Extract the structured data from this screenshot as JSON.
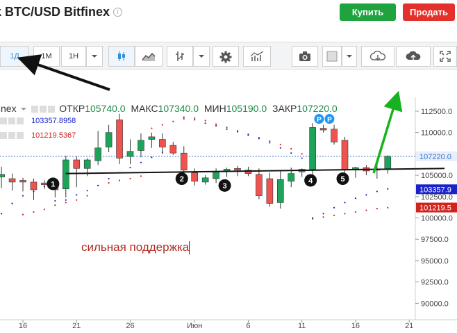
{
  "header": {
    "title": "k BTC/USD Bitfinex",
    "buy_label": "Купить",
    "sell_label": "Продать"
  },
  "toolbar": {
    "interval_1d": "1Д",
    "interval_1m": "1М",
    "interval_1h": "1Н"
  },
  "legend": {
    "symbol": "finex",
    "open_label": "ОТКР",
    "open_value": "105740.0",
    "high_label": "МАКС",
    "high_value": "107340.0",
    "low_label": "МИН",
    "low_value": "105190.0",
    "close_label": "ЗАКР",
    "close_value": "107220.0",
    "ind1_value": "103357.8958",
    "ind2_value": "101219.5367"
  },
  "annotation": "сильная поддержка",
  "markers": [
    "1",
    "2",
    "3",
    "4",
    "5"
  ],
  "badges": [
    "P",
    "P"
  ],
  "colors": {
    "up": "#1ea35b",
    "down": "#ef5350",
    "buy": "#1fa33f",
    "sell": "#e4312b",
    "arrow_green": "#17b21f",
    "ind1": "#1a22c8",
    "ind2": "#d0241e"
  },
  "chart_data": {
    "type": "candlestick",
    "price_axis": [
      "112500.0",
      "110000.0",
      "107500.0",
      "105000.0",
      "102500.0",
      "100000.0",
      "97500.0",
      "95000.0",
      "92500.0",
      "90000.0"
    ],
    "ylim": [
      89500,
      114500
    ],
    "price_tags": [
      {
        "text": "107220.0",
        "value": 107220,
        "color": "#2f74d0",
        "bg": "#e8eefa"
      },
      {
        "text": "103357.9",
        "value": 103357.9,
        "color": "#ffffff",
        "bg": "#1a22c8"
      },
      {
        "text": "101219.5",
        "value": 101219.5,
        "color": "#ffffff",
        "bg": "#d0241e"
      }
    ],
    "x_labels": [
      {
        "day": 0,
        "label": "16"
      },
      {
        "day": 5,
        "label": "21"
      },
      {
        "day": 10,
        "label": "26"
      },
      {
        "day": 16,
        "label": "Июн"
      },
      {
        "day": 21,
        "label": "6"
      },
      {
        "day": 26,
        "label": "11"
      },
      {
        "day": 31,
        "label": "16"
      },
      {
        "day": 36,
        "label": "21"
      }
    ],
    "candles": [
      [
        -2,
        104800,
        106000,
        103500,
        105100
      ],
      [
        -1,
        104600,
        105200,
        103200,
        104200
      ],
      [
        0,
        104400,
        104700,
        103100,
        104200
      ],
      [
        1,
        104200,
        104600,
        102100,
        103300
      ],
      [
        2,
        104100,
        104400,
        103400,
        103900
      ],
      [
        3,
        103900,
        104300,
        102400,
        103300
      ],
      [
        4,
        103400,
        107300,
        102400,
        106800
      ],
      [
        5,
        106800,
        107200,
        103600,
        105800
      ],
      [
        6,
        105800,
        107000,
        104900,
        106800
      ],
      [
        7,
        106700,
        110200,
        106200,
        108200
      ],
      [
        8,
        108300,
        110900,
        107700,
        110000
      ],
      [
        9,
        111500,
        112200,
        106300,
        107000
      ],
      [
        10,
        107200,
        109200,
        106300,
        107800
      ],
      [
        11,
        107900,
        109900,
        107100,
        109100
      ],
      [
        12,
        109200,
        110000,
        108200,
        109500
      ],
      [
        13,
        109200,
        109900,
        107500,
        108300
      ],
      [
        14,
        108500,
        108900,
        107400,
        107600
      ],
      [
        15,
        107600,
        108400,
        105200,
        105600
      ],
      [
        16,
        105300,
        105800,
        103800,
        104300
      ],
      [
        17,
        104200,
        105000,
        103900,
        104700
      ],
      [
        18,
        104600,
        105800,
        104100,
        105400
      ],
      [
        19,
        105500,
        105900,
        104800,
        105700
      ],
      [
        20,
        105800,
        106100,
        104900,
        105600
      ],
      [
        21,
        105600,
        106000,
        104900,
        105200
      ],
      [
        22,
        105100,
        105800,
        102200,
        102600
      ],
      [
        23,
        104600,
        105300,
        101300,
        101700
      ],
      [
        24,
        101800,
        105600,
        101100,
        104500
      ],
      [
        25,
        104300,
        105900,
        103600,
        105200
      ],
      [
        26,
        105400,
        105800,
        104800,
        105700
      ],
      [
        27,
        105700,
        111100,
        105000,
        110600
      ],
      [
        28,
        110500,
        110900,
        110000,
        110300
      ],
      [
        29,
        110400,
        110900,
        108600,
        108900
      ],
      [
        30,
        109100,
        109500,
        105300,
        105600
      ],
      [
        31,
        105600,
        106000,
        104700,
        105900
      ],
      [
        32,
        105900,
        106200,
        105000,
        105500
      ],
      [
        33,
        105600,
        106400,
        104600,
        105700
      ],
      [
        34,
        105740,
        107340,
        105190,
        107220
      ]
    ],
    "support_line": [
      [
        4,
        105200
      ],
      [
        38,
        105800
      ]
    ],
    "psar_blue": [
      [
        -3,
        99000
      ],
      [
        -2,
        100500
      ],
      [
        -1,
        101700
      ],
      [
        0,
        102600
      ],
      [
        1,
        103100
      ],
      [
        2,
        103700
      ],
      [
        3,
        102000
      ],
      [
        4,
        102100
      ],
      [
        5,
        102700
      ],
      [
        6,
        103200
      ],
      [
        7,
        103800
      ],
      [
        8,
        104600
      ],
      [
        9,
        105300
      ],
      [
        10,
        105900
      ],
      [
        11,
        106500
      ],
      [
        12,
        107100
      ],
      [
        13,
        107700
      ],
      [
        14,
        108200
      ],
      [
        15,
        111800
      ],
      [
        16,
        111500
      ],
      [
        17,
        111100
      ],
      [
        18,
        110800
      ],
      [
        19,
        110400
      ],
      [
        20,
        110100
      ],
      [
        21,
        109700
      ],
      [
        22,
        109300
      ],
      [
        23,
        108800
      ],
      [
        24,
        108200
      ],
      [
        25,
        107600
      ],
      [
        26,
        107000
      ],
      [
        27,
        100000
      ],
      [
        28,
        100500
      ],
      [
        29,
        101200
      ],
      [
        30,
        101800
      ],
      [
        31,
        102300
      ],
      [
        32,
        102700
      ],
      [
        33,
        103100
      ],
      [
        34,
        103400
      ]
    ],
    "psar_red": [
      [
        0,
        100400
      ],
      [
        1,
        100700
      ],
      [
        2,
        101000
      ],
      [
        3,
        101500
      ],
      [
        4,
        101800
      ],
      [
        5,
        102100
      ],
      [
        6,
        102600
      ],
      [
        7,
        103800
      ],
      [
        8,
        104100
      ],
      [
        9,
        104400
      ],
      [
        10,
        104600
      ],
      [
        11,
        104900
      ],
      [
        12,
        110500
      ],
      [
        13,
        110900
      ],
      [
        14,
        111300
      ],
      [
        15,
        111600
      ],
      [
        16,
        111700
      ],
      [
        17,
        111400
      ],
      [
        18,
        111000
      ],
      [
        19,
        110600
      ],
      [
        20,
        110200
      ],
      [
        21,
        109800
      ],
      [
        22,
        109400
      ],
      [
        23,
        109000
      ],
      [
        24,
        108600
      ],
      [
        25,
        108100
      ],
      [
        26,
        107500
      ],
      [
        27,
        99900
      ],
      [
        28,
        100100
      ],
      [
        29,
        100300
      ],
      [
        30,
        100500
      ],
      [
        31,
        100700
      ],
      [
        32,
        100900
      ],
      [
        33,
        101100
      ],
      [
        34,
        101200
      ]
    ]
  }
}
